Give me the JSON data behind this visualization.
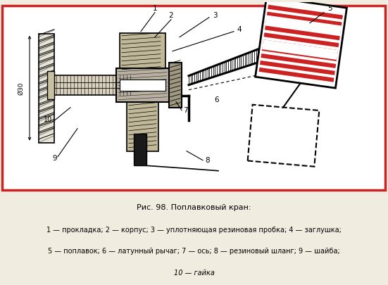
{
  "title": "Рис. 98. Поплавковый кран:",
  "caption_line1": "1 — прокладка; 2 — корпус; 3 — уплотняющая резиновая пробка; 4 — заглушка;",
  "caption_line2": "5 — поплавок; 6 — латунный рычаг; 7 — ось; 8 — резиновый шланг; 9 — шайба;",
  "caption_line3": "10 — гайка",
  "bg_color": "#f0ece0",
  "border_color": "#cc2222"
}
